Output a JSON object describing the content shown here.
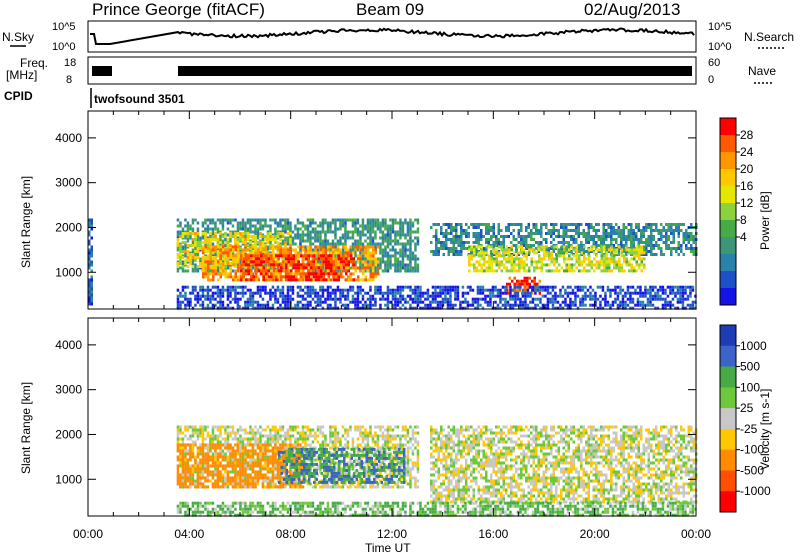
{
  "header": {
    "station": "Prince George (fitACF)",
    "beam": "Beam 09",
    "date": "02/Aug/2013"
  },
  "strips": {
    "nsky_label": "N.Sky",
    "nsearch_label": "N.Search",
    "nsky_ticks": [
      "10^5",
      "10^0"
    ],
    "nsearch_ticks": [
      "10^5",
      "10^0"
    ],
    "freq_label": "Freq.",
    "freq_unit": "[MHz]",
    "freq_ticks": [
      "18",
      "8"
    ],
    "nave_label": "Nave",
    "nave_ticks": [
      "60",
      "0"
    ],
    "cpid_label": "CPID",
    "cpid_value": "twofsound 3501"
  },
  "chart_data": [
    {
      "type": "heatmap",
      "title": "",
      "ylabel": "Slant Range [km]",
      "xlabel": "",
      "x_ticks": [
        "00:00",
        "04:00",
        "08:00",
        "12:00",
        "16:00",
        "20:00",
        "00:00"
      ],
      "y_ticks": [
        1000,
        2000,
        3000,
        4000
      ],
      "xlim_hours": [
        0,
        24
      ],
      "ylim_km": [
        180,
        4600
      ],
      "colorbar": {
        "label": "Power [dB]",
        "ticks": [
          "28",
          "24",
          "20",
          "16",
          "12",
          "8",
          "4"
        ],
        "colors": [
          "#ff0000",
          "#ff5a00",
          "#ff9600",
          "#ffc800",
          "#e6e600",
          "#8cd23c",
          "#46aa46",
          "#3c9678",
          "#2882aa",
          "#1e50c8",
          "#1414e6"
        ]
      },
      "bands": [
        {
          "x0": 0.0,
          "x1": 0.15,
          "y0": 300,
          "y1": 2200,
          "value": 6
        },
        {
          "x0": 3.5,
          "x1": 13.0,
          "y0": 1050,
          "y1": 2200,
          "value": 10
        },
        {
          "x0": 3.5,
          "x1": 8.0,
          "y0": 1100,
          "y1": 1900,
          "value": 20
        },
        {
          "x0": 4.5,
          "x1": 11.5,
          "y0": 800,
          "y1": 1600,
          "value": 24
        },
        {
          "x0": 6.0,
          "x1": 10.5,
          "y0": 800,
          "y1": 1400,
          "value": 29
        },
        {
          "x0": 13.5,
          "x1": 24.0,
          "y0": 1400,
          "y1": 2100,
          "value": 9
        },
        {
          "x0": 15.0,
          "x1": 22.0,
          "y0": 1000,
          "y1": 1600,
          "value": 18
        },
        {
          "x0": 16.5,
          "x1": 17.8,
          "y0": 500,
          "y1": 900,
          "value": 28
        },
        {
          "x0": 3.5,
          "x1": 24.0,
          "y0": 180,
          "y1": 700,
          "value": 4
        }
      ]
    },
    {
      "type": "heatmap",
      "title": "",
      "ylabel": "Slant Range [km]",
      "xlabel": "Time UT",
      "x_ticks": [
        "00:00",
        "04:00",
        "08:00",
        "12:00",
        "16:00",
        "20:00",
        "00:00"
      ],
      "y_ticks": [
        1000,
        2000,
        3000,
        4000
      ],
      "xlim_hours": [
        0,
        24
      ],
      "ylim_km": [
        180,
        4600
      ],
      "colorbar": {
        "label": "Velocity [m s-1]",
        "ticks": [
          "1000",
          "500",
          "100",
          "25",
          "-25",
          "-100",
          "-500",
          "-1000"
        ],
        "colors": [
          "#1e3cb4",
          "#3c64c8",
          "#46aa46",
          "#6ec83c",
          "#c8c8c8",
          "#ffc800",
          "#ff8c00",
          "#ff5000",
          "#ff0000"
        ]
      },
      "bands": [
        {
          "x0": 3.5,
          "x1": 13.0,
          "y0": 800,
          "y1": 2200,
          "value": 0
        },
        {
          "x0": 3.5,
          "x1": 8.5,
          "y0": 800,
          "y1": 1800,
          "value": -300
        },
        {
          "x0": 7.5,
          "x1": 12.5,
          "y0": 900,
          "y1": 1700,
          "value": 300
        },
        {
          "x0": 13.5,
          "x1": 24.0,
          "y0": 500,
          "y1": 2200,
          "value": 0
        },
        {
          "x0": 3.5,
          "x1": 24.0,
          "y0": 180,
          "y1": 500,
          "value": 60
        }
      ]
    }
  ]
}
